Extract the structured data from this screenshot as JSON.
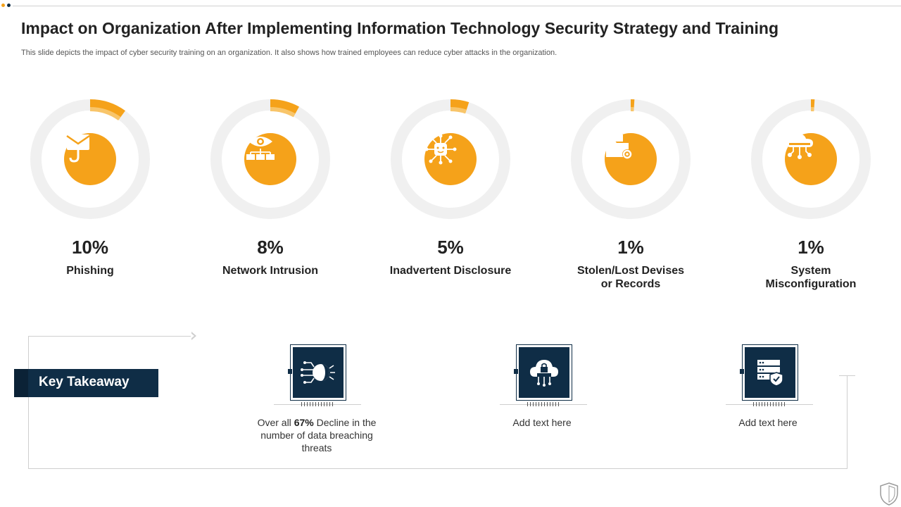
{
  "header": {
    "title": "Impact on Organization After Implementing Information Technology Security Strategy and Training",
    "subtitle": "This slide depicts the impact of cyber  security training on an organization. It also shows how trained employees can reduce cyber attacks in the organization."
  },
  "colors": {
    "accent": "#f5a21a",
    "accent_light": "#f8c56a",
    "navy": "#0f2d46",
    "ring": "#f0f0f0"
  },
  "stats": [
    {
      "percent": "10%",
      "value": 10,
      "label_line1": "Phishing",
      "label_line2": "",
      "icon": "envelope-hook-icon"
    },
    {
      "percent": "8%",
      "value": 8,
      "label_line1": "Network Intrusion",
      "label_line2": "",
      "icon": "eye-network-icon"
    },
    {
      "percent": "5%",
      "value": 5,
      "label_line1": "Inadvertent Disclosure",
      "label_line2": "",
      "icon": "circuit-chip-icon"
    },
    {
      "percent": "1%",
      "value": 1,
      "label_line1": "Stolen/Lost Devises",
      "label_line2": "or Records",
      "icon": "folder-gear-icon"
    },
    {
      "percent": "1%",
      "value": 1,
      "label_line1": "System",
      "label_line2": "Misconfiguration",
      "icon": "cloud-network-icon"
    }
  ],
  "key_takeaway": {
    "title": "Key Takeaway",
    "items": [
      {
        "icon": "hacker-signal-icon",
        "text_before": "Over all ",
        "text_bold": "67%",
        "text_after": " Decline in the number of data breaching threats"
      },
      {
        "icon": "cloud-lock-icon",
        "text_before": "Add text here",
        "text_bold": "",
        "text_after": ""
      },
      {
        "icon": "server-shield-icon",
        "text_before": "Add text here",
        "text_bold": "",
        "text_after": ""
      }
    ]
  }
}
